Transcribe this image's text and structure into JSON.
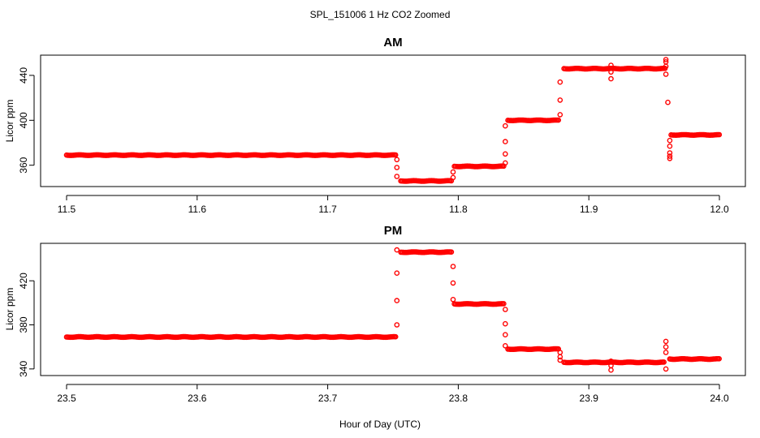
{
  "title": "SPL_151006  1 Hz CO2 Zoomed",
  "xlabel": "Hour of Day (UTC)",
  "colors": {
    "points": "#ff0000",
    "axes": "#000000",
    "background": "#ffffff"
  },
  "chart_data": [
    {
      "type": "scatter",
      "title": "AM",
      "xlabel": "",
      "ylabel": "Licor ppm",
      "xlim": [
        11.5,
        12.0
      ],
      "ylim": [
        341,
        458
      ],
      "xticks": [
        "11.5",
        "11.6",
        "11.7",
        "11.8",
        "11.9",
        "12.0"
      ],
      "yticks": [
        "360",
        "400",
        "440"
      ],
      "grid": false,
      "marker": "open-circle",
      "series": [
        {
          "segments": [
            {
              "x": [
                11.5,
                11.752
              ],
              "y": 369
            },
            {
              "x": [
                11.756,
                11.795
              ],
              "y": 346
            },
            {
              "x": [
                11.797,
                11.835
              ],
              "y": 359
            },
            {
              "x": [
                11.838,
                11.877
              ],
              "y": 400
            },
            {
              "x": [
                11.881,
                11.959
              ],
              "y": 446
            },
            {
              "x": [
                11.963,
                12.0
              ],
              "y": 387
            }
          ],
          "transitions": [
            {
              "x": 11.753,
              "y": [
                365,
                358,
                350
              ]
            },
            {
              "x": 11.796,
              "y": [
                349,
                354
              ]
            },
            {
              "x": 11.836,
              "y": [
                362,
                370,
                381,
                395
              ]
            },
            {
              "x": 11.878,
              "y": [
                405,
                418,
                434
              ]
            },
            {
              "x": 11.917,
              "y": [
                449,
                443,
                437
              ]
            },
            {
              "x": 11.959,
              "y": [
                452,
                454,
                448,
                441
              ]
            },
            {
              "x": 11.9605,
              "y": [
                416
              ]
            },
            {
              "x": 11.962,
              "y": [
                366,
                368,
                371,
                377,
                382
              ]
            }
          ]
        }
      ]
    },
    {
      "type": "scatter",
      "title": "PM",
      "xlabel": "Hour of Day (UTC)",
      "ylabel": "Licor ppm",
      "xlim": [
        23.5,
        24.0
      ],
      "ylim": [
        334,
        454
      ],
      "xticks": [
        "23.5",
        "23.6",
        "23.7",
        "23.8",
        "23.9",
        "24.0"
      ],
      "yticks": [
        "340",
        "380",
        "420"
      ],
      "grid": false,
      "marker": "open-circle",
      "series": [
        {
          "segments": [
            {
              "x": [
                23.5,
                23.752
              ],
              "y": 369
            },
            {
              "x": [
                23.756,
                23.795
              ],
              "y": 446
            },
            {
              "x": [
                23.797,
                23.835
              ],
              "y": 399
            },
            {
              "x": [
                23.838,
                23.877
              ],
              "y": 358
            },
            {
              "x": [
                23.881,
                23.958
              ],
              "y": 346
            },
            {
              "x": [
                23.962,
                24.0
              ],
              "y": 349
            }
          ],
          "transitions": [
            {
              "x": 23.753,
              "y": [
                380,
                402,
                427,
                448
              ]
            },
            {
              "x": 23.796,
              "y": [
                433,
                418,
                403
              ]
            },
            {
              "x": 23.836,
              "y": [
                394,
                381,
                371,
                361
              ]
            },
            {
              "x": 23.878,
              "y": [
                355,
                351,
                348
              ]
            },
            {
              "x": 23.917,
              "y": [
                347,
                343,
                339
              ]
            },
            {
              "x": 23.959,
              "y": [
                340,
                365,
                360,
                355
              ]
            }
          ]
        }
      ]
    }
  ]
}
